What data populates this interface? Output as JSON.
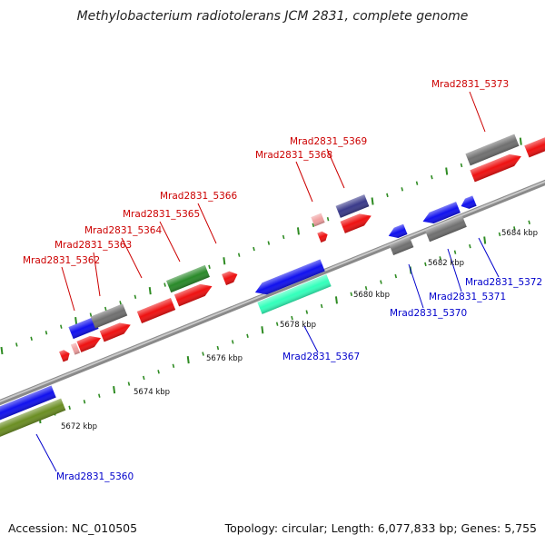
{
  "title": "Methylobacterium radiotolerans JCM 2831, complete genome",
  "footer": {
    "accession": "Accession: NC_010505",
    "summary": "Topology: circular; Length: 6,077,833 bp; Genes: 5,755"
  },
  "ticks": [
    "5672 kbp",
    "5674 kbp",
    "5676 kbp",
    "5678 kbp",
    "5680 kbp",
    "5682 kbp",
    "5684 kbp"
  ],
  "genes": [
    {
      "id": "Mrad2831_5360",
      "strand": "reverse",
      "color": "#0000cc"
    },
    {
      "id": "Mrad2831_5362",
      "strand": "forward",
      "color": "#cc0000"
    },
    {
      "id": "Mrad2831_5363",
      "strand": "forward",
      "color": "#cc0000"
    },
    {
      "id": "Mrad2831_5364",
      "strand": "forward",
      "color": "#cc0000"
    },
    {
      "id": "Mrad2831_5365",
      "strand": "forward",
      "color": "#cc0000"
    },
    {
      "id": "Mrad2831_5366",
      "strand": "forward",
      "color": "#cc0000"
    },
    {
      "id": "Mrad2831_5367",
      "strand": "reverse",
      "color": "#0000cc"
    },
    {
      "id": "Mrad2831_5368",
      "strand": "forward",
      "color": "#cc0000"
    },
    {
      "id": "Mrad2831_5369",
      "strand": "forward",
      "color": "#cc0000"
    },
    {
      "id": "Mrad2831_5370",
      "strand": "reverse",
      "color": "#0000cc"
    },
    {
      "id": "Mrad2831_5371",
      "strand": "reverse",
      "color": "#0000cc"
    },
    {
      "id": "Mrad2831_5372",
      "strand": "reverse",
      "color": "#0000cc"
    },
    {
      "id": "Mrad2831_5373",
      "strand": "forward",
      "color": "#cc0000"
    }
  ],
  "colors": {
    "backbone": "#888888",
    "tick": "#2e8b22",
    "cds_red": "#ee1111",
    "cds_blue": "#1111ee",
    "gray": "#707070",
    "green": "#2a8a2a",
    "olive": "#6b8e23",
    "teal": "#33ffbb",
    "navy": "#3a3a8a",
    "pink": "#f0a0a0"
  }
}
